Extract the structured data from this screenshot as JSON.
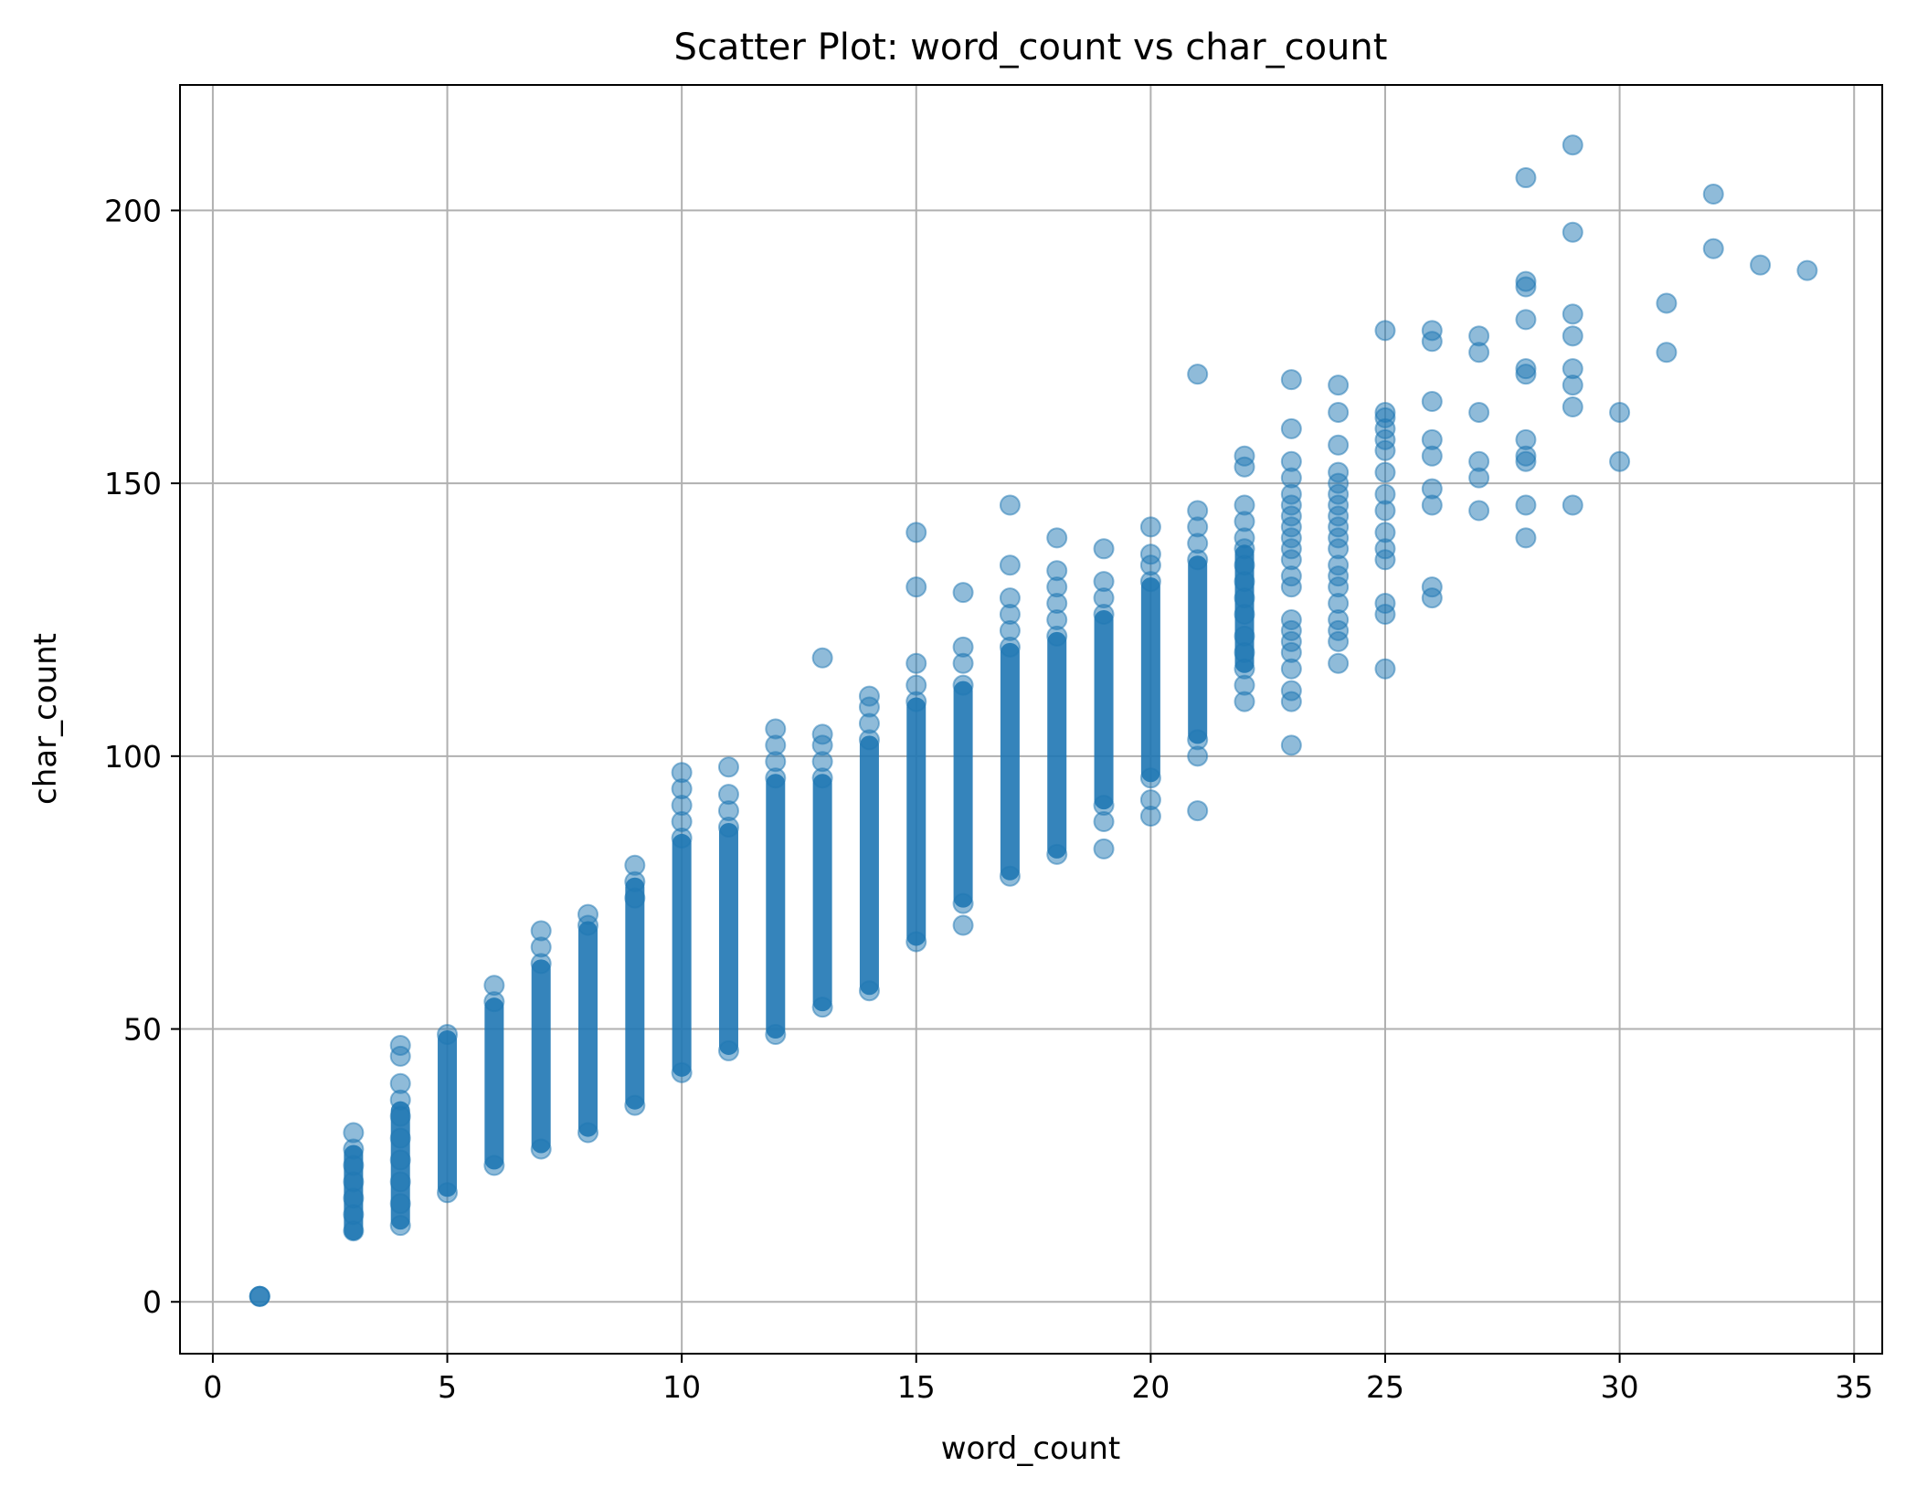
{
  "chart_data": {
    "type": "scatter",
    "title": "Scatter Plot: word_count vs char_count",
    "xlabel": "word_count",
    "ylabel": "char_count",
    "xlim": [
      -0.7,
      35.6
    ],
    "ylim": [
      -9.5,
      223
    ],
    "xticks": [
      0,
      5,
      10,
      15,
      20,
      25,
      30,
      35
    ],
    "yticks": [
      0,
      50,
      100,
      150,
      200
    ],
    "grid": true,
    "legend": "none",
    "marker_color": "#1f77b4",
    "marker_alpha": 0.5,
    "series": [
      {
        "points": [
          [
            1,
            1
          ],
          [
            1,
            1
          ],
          [
            1,
            1
          ],
          [
            3,
            13
          ],
          [
            3,
            16
          ],
          [
            3,
            19
          ],
          [
            3,
            22
          ],
          [
            3,
            25
          ],
          [
            3,
            28
          ],
          [
            3,
            31
          ],
          [
            4,
            14
          ],
          [
            4,
            18
          ],
          [
            4,
            22
          ],
          [
            4,
            26
          ],
          [
            4,
            30
          ],
          [
            4,
            34
          ],
          [
            4,
            37
          ],
          [
            4,
            40
          ],
          [
            4,
            45
          ],
          [
            4,
            47
          ],
          [
            5,
            20
          ],
          [
            5,
            49
          ],
          [
            6,
            25
          ],
          [
            6,
            55
          ],
          [
            6,
            58
          ],
          [
            7,
            28
          ],
          [
            7,
            62
          ],
          [
            7,
            65
          ],
          [
            7,
            68
          ],
          [
            8,
            31
          ],
          [
            8,
            69
          ],
          [
            8,
            71
          ],
          [
            9,
            36
          ],
          [
            9,
            74
          ],
          [
            9,
            77
          ],
          [
            9,
            80
          ],
          [
            10,
            42
          ],
          [
            10,
            85
          ],
          [
            10,
            88
          ],
          [
            10,
            91
          ],
          [
            10,
            94
          ],
          [
            10,
            97
          ],
          [
            11,
            46
          ],
          [
            11,
            87
          ],
          [
            11,
            90
          ],
          [
            11,
            93
          ],
          [
            11,
            98
          ],
          [
            12,
            49
          ],
          [
            12,
            96
          ],
          [
            12,
            99
          ],
          [
            12,
            102
          ],
          [
            12,
            105
          ],
          [
            13,
            54
          ],
          [
            13,
            96
          ],
          [
            13,
            99
          ],
          [
            13,
            102
          ],
          [
            13,
            104
          ],
          [
            13,
            118
          ],
          [
            14,
            57
          ],
          [
            14,
            103
          ],
          [
            14,
            106
          ],
          [
            14,
            109
          ],
          [
            14,
            111
          ],
          [
            15,
            66
          ],
          [
            15,
            110
          ],
          [
            15,
            113
          ],
          [
            15,
            117
          ],
          [
            15,
            131
          ],
          [
            15,
            141
          ],
          [
            16,
            69
          ],
          [
            16,
            73
          ],
          [
            16,
            113
          ],
          [
            16,
            117
          ],
          [
            16,
            120
          ],
          [
            16,
            130
          ],
          [
            17,
            78
          ],
          [
            17,
            120
          ],
          [
            17,
            123
          ],
          [
            17,
            126
          ],
          [
            17,
            129
          ],
          [
            17,
            135
          ],
          [
            17,
            146
          ],
          [
            18,
            82
          ],
          [
            18,
            122
          ],
          [
            18,
            125
          ],
          [
            18,
            128
          ],
          [
            18,
            131
          ],
          [
            18,
            134
          ],
          [
            18,
            140
          ],
          [
            19,
            83
          ],
          [
            19,
            88
          ],
          [
            19,
            91
          ],
          [
            19,
            126
          ],
          [
            19,
            129
          ],
          [
            19,
            132
          ],
          [
            19,
            138
          ],
          [
            20,
            89
          ],
          [
            20,
            92
          ],
          [
            20,
            96
          ],
          [
            20,
            132
          ],
          [
            20,
            135
          ],
          [
            20,
            137
          ],
          [
            20,
            142
          ],
          [
            21,
            90
          ],
          [
            21,
            100
          ],
          [
            21,
            103
          ],
          [
            21,
            136
          ],
          [
            21,
            139
          ],
          [
            21,
            142
          ],
          [
            21,
            145
          ],
          [
            21,
            170
          ],
          [
            22,
            110
          ],
          [
            22,
            113
          ],
          [
            22,
            116
          ],
          [
            22,
            119
          ],
          [
            22,
            122
          ],
          [
            22,
            126
          ],
          [
            22,
            129
          ],
          [
            22,
            132
          ],
          [
            22,
            135
          ],
          [
            22,
            138
          ],
          [
            22,
            140
          ],
          [
            22,
            143
          ],
          [
            22,
            146
          ],
          [
            22,
            153
          ],
          [
            22,
            155
          ],
          [
            23,
            102
          ],
          [
            23,
            110
          ],
          [
            23,
            112
          ],
          [
            23,
            116
          ],
          [
            23,
            119
          ],
          [
            23,
            121
          ],
          [
            23,
            123
          ],
          [
            23,
            125
          ],
          [
            23,
            131
          ],
          [
            23,
            133
          ],
          [
            23,
            136
          ],
          [
            23,
            138
          ],
          [
            23,
            140
          ],
          [
            23,
            142
          ],
          [
            23,
            144
          ],
          [
            23,
            146
          ],
          [
            23,
            148
          ],
          [
            23,
            151
          ],
          [
            23,
            154
          ],
          [
            23,
            160
          ],
          [
            23,
            169
          ],
          [
            24,
            117
          ],
          [
            24,
            121
          ],
          [
            24,
            123
          ],
          [
            24,
            125
          ],
          [
            24,
            128
          ],
          [
            24,
            131
          ],
          [
            24,
            133
          ],
          [
            24,
            135
          ],
          [
            24,
            138
          ],
          [
            24,
            140
          ],
          [
            24,
            142
          ],
          [
            24,
            144
          ],
          [
            24,
            146
          ],
          [
            24,
            148
          ],
          [
            24,
            150
          ],
          [
            24,
            152
          ],
          [
            24,
            157
          ],
          [
            24,
            163
          ],
          [
            24,
            168
          ],
          [
            25,
            116
          ],
          [
            25,
            126
          ],
          [
            25,
            128
          ],
          [
            25,
            136
          ],
          [
            25,
            138
          ],
          [
            25,
            141
          ],
          [
            25,
            145
          ],
          [
            25,
            148
          ],
          [
            25,
            152
          ],
          [
            25,
            156
          ],
          [
            25,
            158
          ],
          [
            25,
            160
          ],
          [
            25,
            162
          ],
          [
            25,
            163
          ],
          [
            25,
            178
          ],
          [
            26,
            129
          ],
          [
            26,
            131
          ],
          [
            26,
            146
          ],
          [
            26,
            149
          ],
          [
            26,
            155
          ],
          [
            26,
            158
          ],
          [
            26,
            165
          ],
          [
            26,
            176
          ],
          [
            26,
            178
          ],
          [
            27,
            145
          ],
          [
            27,
            151
          ],
          [
            27,
            154
          ],
          [
            27,
            163
          ],
          [
            27,
            174
          ],
          [
            27,
            177
          ],
          [
            28,
            140
          ],
          [
            28,
            146
          ],
          [
            28,
            154
          ],
          [
            28,
            155
          ],
          [
            28,
            158
          ],
          [
            28,
            170
          ],
          [
            28,
            171
          ],
          [
            28,
            180
          ],
          [
            28,
            186
          ],
          [
            28,
            187
          ],
          [
            28,
            206
          ],
          [
            29,
            146
          ],
          [
            29,
            164
          ],
          [
            29,
            168
          ],
          [
            29,
            171
          ],
          [
            29,
            177
          ],
          [
            29,
            181
          ],
          [
            29,
            196
          ],
          [
            29,
            212
          ],
          [
            30,
            154
          ],
          [
            30,
            163
          ],
          [
            31,
            174
          ],
          [
            31,
            183
          ],
          [
            32,
            193
          ],
          [
            32,
            203
          ],
          [
            33,
            190
          ],
          [
            34,
            189
          ]
        ]
      }
    ],
    "dense_bands": [
      [
        3,
        13,
        27
      ],
      [
        4,
        15,
        35
      ],
      [
        5,
        21,
        48
      ],
      [
        6,
        26,
        54
      ],
      [
        7,
        29,
        61
      ],
      [
        8,
        32,
        68
      ],
      [
        9,
        37,
        76
      ],
      [
        10,
        43,
        84
      ],
      [
        11,
        47,
        86
      ],
      [
        12,
        50,
        95
      ],
      [
        13,
        55,
        95
      ],
      [
        14,
        58,
        102
      ],
      [
        15,
        67,
        109
      ],
      [
        16,
        74,
        112
      ],
      [
        17,
        79,
        119
      ],
      [
        18,
        83,
        121
      ],
      [
        19,
        92,
        125
      ],
      [
        20,
        97,
        131
      ],
      [
        21,
        104,
        135
      ],
      [
        22,
        117,
        137
      ]
    ]
  }
}
